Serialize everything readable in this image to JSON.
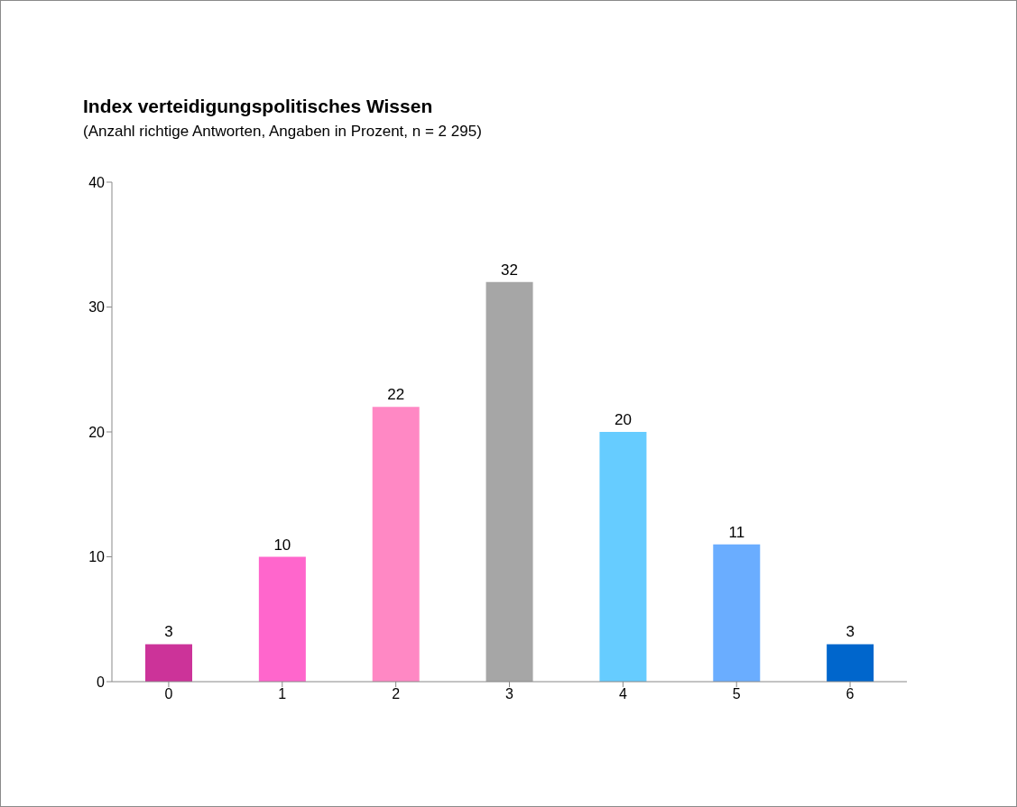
{
  "chart_data": {
    "type": "bar",
    "title": "Index verteidigungspolitisches Wissen",
    "subtitle": "(Anzahl richtige Antworten, Angaben in Prozent, n = 2 295)",
    "categories": [
      "0",
      "1",
      "2",
      "3",
      "4",
      "5",
      "6"
    ],
    "values": [
      3,
      10,
      22,
      32,
      20,
      11,
      3
    ],
    "colors": [
      "#cc3399",
      "#ff66cc",
      "#ff88c4",
      "#a6a6a6",
      "#66ccff",
      "#6aadff",
      "#0066cc"
    ],
    "ylim": [
      0,
      40
    ],
    "yticks": [
      0,
      10,
      20,
      30,
      40
    ],
    "data_labels": true
  }
}
